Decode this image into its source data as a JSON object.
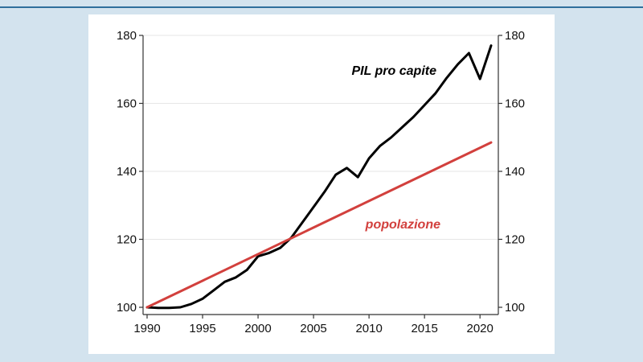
{
  "colors": {
    "background": "#d3e3ee",
    "accent_rule": "#2f6f9c",
    "panel": "#ffffff"
  },
  "chart_data": {
    "type": "line",
    "title": "",
    "xlabel": "",
    "ylabel": "",
    "xlim": [
      1990,
      2021
    ],
    "ylim": [
      100,
      180
    ],
    "xticks": [
      1990,
      1995,
      2000,
      2005,
      2010,
      2015,
      2020
    ],
    "yticks": [
      100,
      120,
      140,
      160,
      180
    ],
    "right_axis_ticks": [
      100,
      120,
      140,
      160,
      180
    ],
    "grid": "horizontal",
    "series": [
      {
        "name": "PIL pro capite",
        "color": "#000000",
        "x": [
          1990,
          1991,
          1992,
          1993,
          1994,
          1995,
          1996,
          1997,
          1998,
          1999,
          2000,
          2001,
          2002,
          2003,
          2004,
          2005,
          2006,
          2007,
          2008,
          2009,
          2010,
          2011,
          2012,
          2013,
          2014,
          2015,
          2016,
          2017,
          2018,
          2019,
          2020,
          2021
        ],
        "values": [
          100,
          99.8,
          99.8,
          100,
          101,
          102.5,
          105,
          107.5,
          108.8,
          111,
          115,
          116,
          117.5,
          120.5,
          125,
          129.5,
          134,
          139,
          141,
          138.3,
          143.8,
          147.5,
          150,
          153,
          156,
          159.5,
          163,
          167.5,
          171.5,
          174.8,
          167.2,
          177
        ]
      },
      {
        "name": "popolazione",
        "color": "#d2403d",
        "x": [
          1990,
          2021
        ],
        "values": [
          100,
          148.5
        ]
      }
    ]
  }
}
